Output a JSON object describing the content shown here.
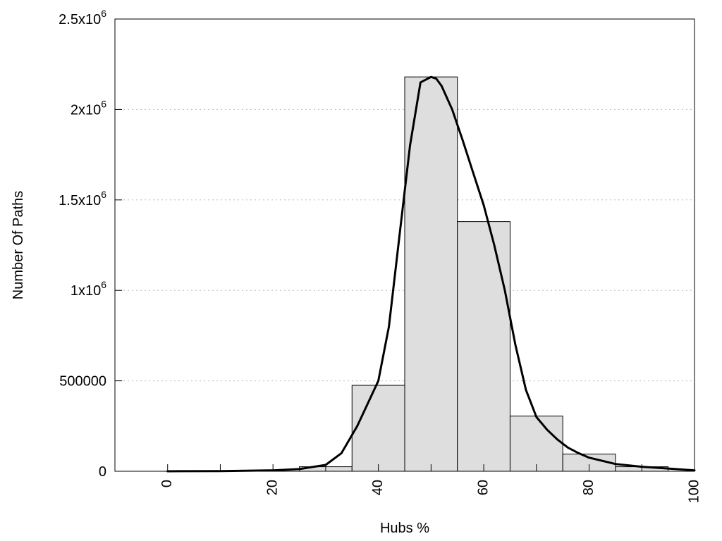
{
  "chart_data": {
    "type": "bar",
    "xlabel": "Hubs %",
    "ylabel": "Number Of Paths",
    "xlim": [
      -10,
      100
    ],
    "ylim": [
      0,
      2500000
    ],
    "grid": {
      "horizontal": true,
      "vertical": false
    },
    "x_ticks": [
      {
        "value": 0,
        "label": "0"
      },
      {
        "value": 20,
        "label": "20"
      },
      {
        "value": 40,
        "label": "40"
      },
      {
        "value": 60,
        "label": "60"
      },
      {
        "value": 80,
        "label": "80"
      },
      {
        "value": 100,
        "label": "100"
      }
    ],
    "y_ticks": [
      {
        "value": 0,
        "base": "0",
        "exp": ""
      },
      {
        "value": 500000,
        "base": "500000",
        "exp": ""
      },
      {
        "value": 1000000,
        "base": "1x10",
        "exp": "6"
      },
      {
        "value": 1500000,
        "base": "1.5x10",
        "exp": "6"
      },
      {
        "value": 2000000,
        "base": "2x10",
        "exp": "6"
      },
      {
        "value": 2500000,
        "base": "2.5x10",
        "exp": "6"
      }
    ],
    "bars": [
      {
        "x0": 0,
        "x1": 5,
        "value": 0
      },
      {
        "x0": 5,
        "x1": 15,
        "value": 0
      },
      {
        "x0": 15,
        "x1": 25,
        "value": 0
      },
      {
        "x0": 25,
        "x1": 35,
        "value": 25000
      },
      {
        "x0": 35,
        "x1": 45,
        "value": 475000
      },
      {
        "x0": 45,
        "x1": 55,
        "value": 2180000
      },
      {
        "x0": 55,
        "x1": 65,
        "value": 1380000
      },
      {
        "x0": 65,
        "x1": 75,
        "value": 305000
      },
      {
        "x0": 75,
        "x1": 85,
        "value": 95000
      },
      {
        "x0": 85,
        "x1": 95,
        "value": 25000
      },
      {
        "x0": 95,
        "x1": 100,
        "value": 0
      }
    ],
    "curve": {
      "x": [
        0,
        10,
        20,
        25,
        30,
        33,
        36,
        40,
        42,
        44,
        46,
        48,
        50,
        51,
        52,
        54,
        56,
        58,
        60,
        62,
        64,
        66,
        68,
        70,
        72,
        74,
        76,
        78,
        80,
        85,
        90,
        95,
        100
      ],
      "y": [
        0,
        1000,
        5000,
        12000,
        35000,
        100000,
        250000,
        500000,
        800000,
        1300000,
        1800000,
        2150000,
        2180000,
        2170000,
        2130000,
        2000000,
        1830000,
        1650000,
        1470000,
        1250000,
        1000000,
        700000,
        450000,
        300000,
        230000,
        175000,
        130000,
        100000,
        75000,
        40000,
        25000,
        15000,
        5000
      ],
      "color": "#000000"
    },
    "bar_color": "#dedede"
  }
}
